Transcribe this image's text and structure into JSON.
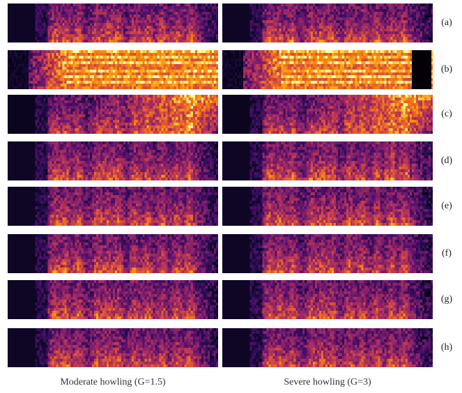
{
  "rows": [
    {
      "label": "(a)"
    },
    {
      "label": "(b)"
    },
    {
      "label": "(c)"
    },
    {
      "label": "(d)"
    },
    {
      "label": "(e)"
    },
    {
      "label": "(f)"
    },
    {
      "label": "(g)"
    },
    {
      "label": "(h)"
    }
  ],
  "columns": [
    {
      "caption": "Moderate howling (G=1.5)"
    },
    {
      "caption": "Severe howling (G=3)"
    }
  ],
  "colormap": "inferno"
}
